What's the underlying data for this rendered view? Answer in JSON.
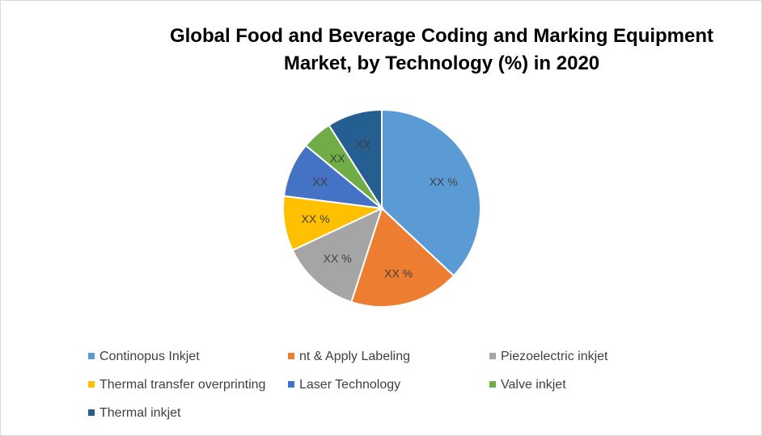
{
  "chart_data": {
    "type": "pie",
    "title_lines": [
      "Global Food and Beverage Coding and Marking Equipment",
      "Market, by Technology (%) in 2020"
    ],
    "slices": [
      {
        "name": "Continopus Inkjet",
        "value": 37,
        "label": "XX %",
        "color": "#5B9BD5"
      },
      {
        "name": "nt & Apply Labeling",
        "value": 18,
        "label": "XX %",
        "color": "#ED7D31"
      },
      {
        "name": "Piezoelectric inkjet",
        "value": 13,
        "label": "XX %",
        "color": "#A5A5A5"
      },
      {
        "name": "Thermal transfer overprinting",
        "value": 9,
        "label": "XX %",
        "color": "#FFC000"
      },
      {
        "name": "Laser Technology",
        "value": 9,
        "label": "XX",
        "color": "#4472C4"
      },
      {
        "name": "Valve inkjet",
        "value": 5,
        "label": "XX",
        "color": "#70AD47"
      },
      {
        "name": "Thermal inkjet",
        "value": 9,
        "label": "XX",
        "color": "#255E91"
      }
    ],
    "legend_position": "bottom"
  }
}
